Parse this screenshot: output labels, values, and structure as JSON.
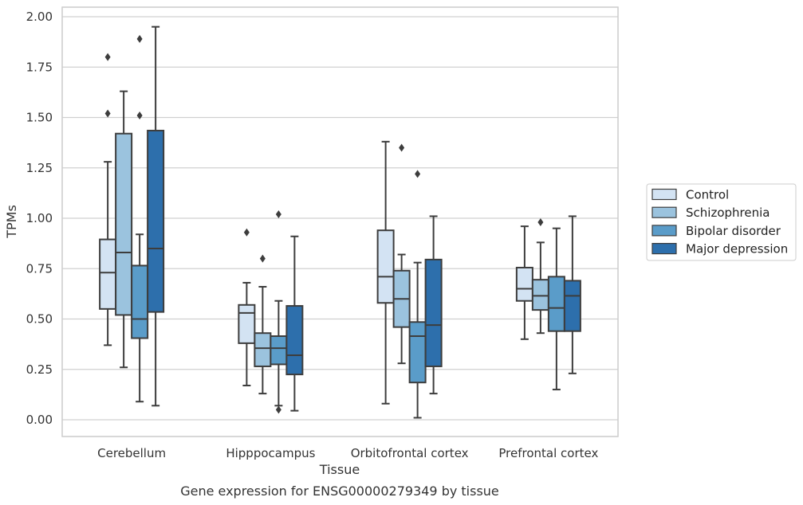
{
  "chart_data": {
    "type": "box",
    "caption": "Gene expression for ENSG00000279349 by tissue",
    "xlabel": "Tissue",
    "ylabel": "TPMs",
    "ylim": [
      -0.08,
      2.05
    ],
    "yticks": [
      0.0,
      0.25,
      0.5,
      0.75,
      1.0,
      1.25,
      1.5,
      1.75,
      2.0
    ],
    "ytick_labels": [
      "0.00",
      "0.25",
      "0.50",
      "0.75",
      "1.00",
      "1.25",
      "1.50",
      "1.75",
      "2.00"
    ],
    "grid": "horizontal",
    "legend_position": "right",
    "categories": [
      "Cerebellum",
      "Hipppocampus",
      "Orbitofrontal cortex",
      "Prefrontal cortex"
    ],
    "series": [
      {
        "name": "Control",
        "color": "#d3e3f3",
        "boxes": [
          {
            "whisker_low": 0.37,
            "q1": 0.55,
            "median": 0.73,
            "q3": 0.895,
            "whisker_high": 1.28,
            "outliers": [
              1.52,
              1.8
            ]
          },
          {
            "whisker_low": 0.17,
            "q1": 0.38,
            "median": 0.53,
            "q3": 0.57,
            "whisker_high": 0.68,
            "outliers": [
              0.93
            ]
          },
          {
            "whisker_low": 0.08,
            "q1": 0.58,
            "median": 0.71,
            "q3": 0.94,
            "whisker_high": 1.38,
            "outliers": []
          },
          {
            "whisker_low": 0.4,
            "q1": 0.59,
            "median": 0.65,
            "q3": 0.755,
            "whisker_high": 0.96,
            "outliers": []
          }
        ]
      },
      {
        "name": "Schizophrenia",
        "color": "#9bc3de",
        "boxes": [
          {
            "whisker_low": 0.26,
            "q1": 0.52,
            "median": 0.83,
            "q3": 1.42,
            "whisker_high": 1.63,
            "outliers": []
          },
          {
            "whisker_low": 0.13,
            "q1": 0.265,
            "median": 0.355,
            "q3": 0.43,
            "whisker_high": 0.66,
            "outliers": [
              0.8
            ]
          },
          {
            "whisker_low": 0.28,
            "q1": 0.46,
            "median": 0.6,
            "q3": 0.74,
            "whisker_high": 0.82,
            "outliers": [
              1.35
            ]
          },
          {
            "whisker_low": 0.43,
            "q1": 0.545,
            "median": 0.615,
            "q3": 0.695,
            "whisker_high": 0.88,
            "outliers": [
              0.98
            ]
          }
        ]
      },
      {
        "name": "Bipolar disorder",
        "color": "#5a9cc9",
        "boxes": [
          {
            "whisker_low": 0.09,
            "q1": 0.405,
            "median": 0.5,
            "q3": 0.765,
            "whisker_high": 0.92,
            "outliers": [
              1.51,
              1.89
            ]
          },
          {
            "whisker_low": 0.07,
            "q1": 0.275,
            "median": 0.355,
            "q3": 0.415,
            "whisker_high": 0.59,
            "outliers": [
              0.05,
              1.02
            ]
          },
          {
            "whisker_low": 0.01,
            "q1": 0.185,
            "median": 0.415,
            "q3": 0.485,
            "whisker_high": 0.78,
            "outliers": [
              1.22
            ]
          },
          {
            "whisker_low": 0.15,
            "q1": 0.44,
            "median": 0.555,
            "q3": 0.71,
            "whisker_high": 0.95,
            "outliers": []
          }
        ]
      },
      {
        "name": "Major depression",
        "color": "#2d6fac",
        "boxes": [
          {
            "whisker_low": 0.07,
            "q1": 0.535,
            "median": 0.85,
            "q3": 1.435,
            "whisker_high": 1.95,
            "outliers": []
          },
          {
            "whisker_low": 0.045,
            "q1": 0.225,
            "median": 0.32,
            "q3": 0.565,
            "whisker_high": 0.91,
            "outliers": []
          },
          {
            "whisker_low": 0.13,
            "q1": 0.265,
            "median": 0.47,
            "q3": 0.795,
            "whisker_high": 1.01,
            "outliers": []
          },
          {
            "whisker_low": 0.23,
            "q1": 0.44,
            "median": 0.615,
            "q3": 0.69,
            "whisker_high": 1.01,
            "outliers": []
          }
        ]
      }
    ]
  }
}
